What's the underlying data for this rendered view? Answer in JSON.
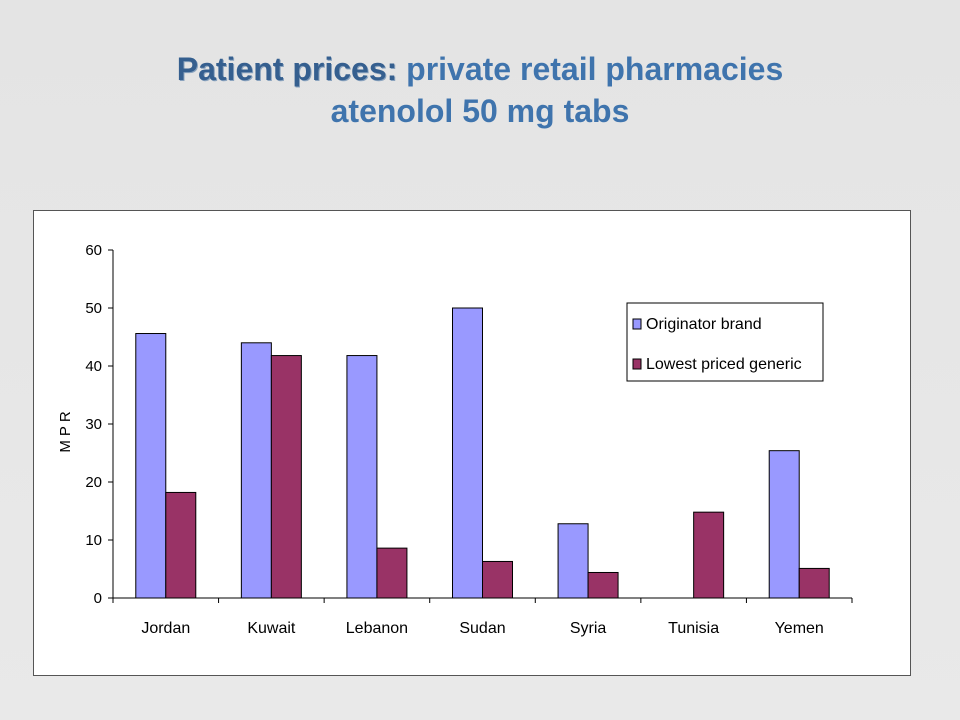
{
  "slide": {
    "title_prefix": "Patient prices:",
    "title_rest": " private retail pharmacies",
    "title_line2": "atenolol 50 mg tabs"
  },
  "chart_data": {
    "type": "bar",
    "title": "",
    "xlabel": "",
    "ylabel": "MPR",
    "categories": [
      "Jordan",
      "Kuwait",
      "Lebanon",
      "Sudan",
      "Syria",
      "Tunisia",
      "Yemen"
    ],
    "series": [
      {
        "name": "Originator brand",
        "color": "#9999ff",
        "values": [
          45.6,
          44.0,
          41.8,
          50.0,
          12.8,
          null,
          25.4
        ]
      },
      {
        "name": "Lowest priced generic",
        "color": "#993366",
        "values": [
          18.2,
          41.8,
          8.6,
          6.3,
          4.4,
          14.8,
          5.1
        ]
      }
    ],
    "ylim": [
      0,
      60
    ],
    "yticks": [
      0,
      10,
      20,
      30,
      40,
      50,
      60
    ],
    "grid": false,
    "legend_position": "top-right"
  }
}
